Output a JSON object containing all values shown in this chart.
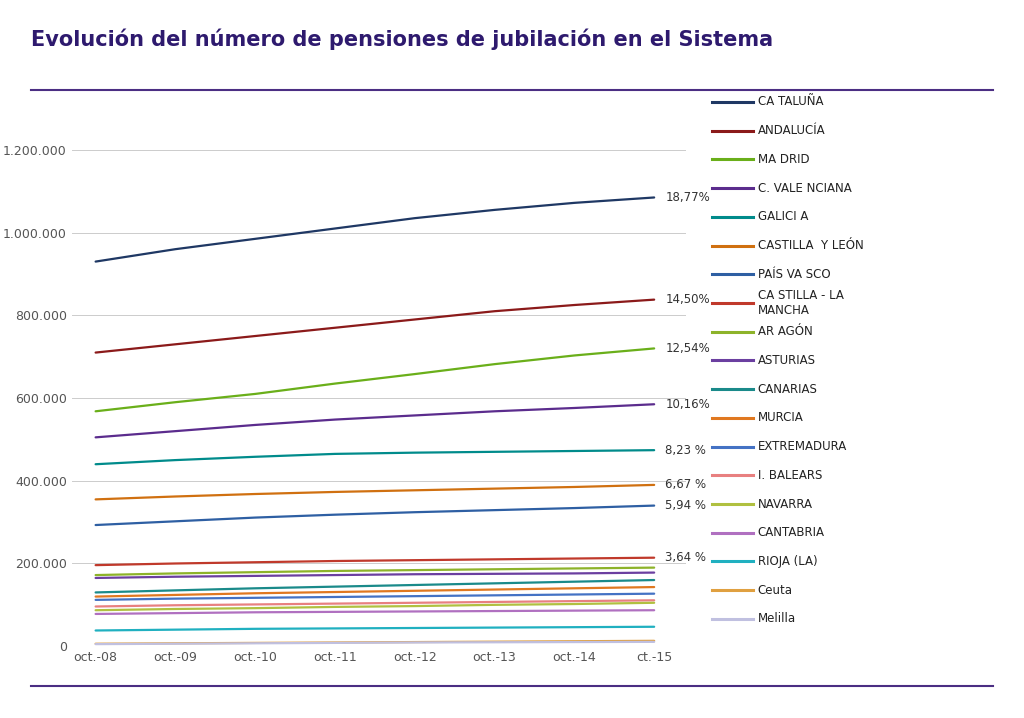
{
  "title": "Evolución del número de pensiones de jubilación en el Sistema",
  "x_labels": [
    "oct.-08",
    "oct.-09",
    "oct.-10",
    "oct.-11",
    "oct.-12",
    "oct.-13",
    "oct.-14",
    "ct.-15"
  ],
  "ylim": [
    0,
    1250000
  ],
  "yticks": [
    0,
    200000,
    400000,
    600000,
    800000,
    1000000,
    1200000
  ],
  "ytick_labels": [
    "0",
    "200.000",
    "400.000",
    "600.000",
    "800.000",
    "1.000.000",
    "1.200.000"
  ],
  "series": [
    {
      "name": "CA TALUÑA",
      "color": "#1F3864",
      "values": [
        930000,
        960000,
        985000,
        1010000,
        1035000,
        1055000,
        1072000,
        1085000
      ],
      "pct": "18,77%"
    },
    {
      "name": "ANDALUCÍA",
      "color": "#8B1A1A",
      "values": [
        710000,
        730000,
        750000,
        770000,
        790000,
        810000,
        825000,
        838000
      ],
      "pct": "14,50%"
    },
    {
      "name": "MA DRID",
      "color": "#6AAF1A",
      "values": [
        568000,
        590000,
        610000,
        635000,
        658000,
        682000,
        703000,
        720000
      ],
      "pct": "12,54%"
    },
    {
      "name": "C. VALE NCIANA",
      "color": "#5B2C8D",
      "values": [
        505000,
        520000,
        535000,
        548000,
        558000,
        568000,
        576000,
        585000
      ],
      "pct": "10,16%"
    },
    {
      "name": "GALICI A",
      "color": "#008B8B",
      "values": [
        440000,
        450000,
        458000,
        465000,
        468000,
        470000,
        472000,
        474000
      ],
      "pct": "8,23 %"
    },
    {
      "name": "CASTILLA  Y LEÓN",
      "color": "#D07010",
      "values": [
        355000,
        362000,
        368000,
        373000,
        377000,
        381000,
        385000,
        390000
      ],
      "pct": "6,67 %"
    },
    {
      "name": "PAÍS VA SCO",
      "color": "#2E5FA3",
      "values": [
        293000,
        302000,
        311000,
        318000,
        324000,
        329000,
        334000,
        340000
      ],
      "pct": "5,94 %"
    },
    {
      "name": "CA STILLA - LA\nMANCHA",
      "color": "#C0392B",
      "values": [
        196000,
        200000,
        203000,
        206000,
        208000,
        210000,
        212000,
        214000
      ],
      "pct": "3,64 %"
    },
    {
      "name": "AR AGÓN",
      "color": "#8DB32A",
      "values": [
        172000,
        176000,
        179000,
        182000,
        184000,
        186000,
        188000,
        190000
      ],
      "pct": null
    },
    {
      "name": "ASTURIAS",
      "color": "#6B3FA0",
      "values": [
        165000,
        168000,
        170000,
        172000,
        174000,
        175000,
        176000,
        178000
      ],
      "pct": null
    },
    {
      "name": "CANARIAS",
      "color": "#1A8A8A",
      "values": [
        130000,
        135000,
        140000,
        144000,
        148000,
        152000,
        156000,
        160000
      ],
      "pct": null
    },
    {
      "name": "MURCIA",
      "color": "#E07820",
      "values": [
        120000,
        124000,
        128000,
        131000,
        134000,
        137000,
        140000,
        143000
      ],
      "pct": null
    },
    {
      "name": "EXTREMADURA",
      "color": "#4472C4",
      "values": [
        112000,
        115000,
        117000,
        119000,
        121000,
        123000,
        125000,
        127000
      ],
      "pct": null
    },
    {
      "name": "I. BALEARS",
      "color": "#E88080",
      "values": [
        96000,
        99000,
        101000,
        103000,
        105000,
        107000,
        109000,
        111000
      ],
      "pct": null
    },
    {
      "name": "NAVARRA",
      "color": "#B0C040",
      "values": [
        87000,
        90000,
        92000,
        95000,
        97000,
        100000,
        102000,
        105000
      ],
      "pct": null
    },
    {
      "name": "CANTABRIA",
      "color": "#B070C0",
      "values": [
        78000,
        80000,
        82000,
        83000,
        84000,
        85000,
        86000,
        87000
      ],
      "pct": null
    },
    {
      "name": "RIOJA (LA)",
      "color": "#20B0C0",
      "values": [
        38000,
        40000,
        42000,
        43000,
        44000,
        45000,
        46000,
        47000
      ],
      "pct": null
    },
    {
      "name": "Ceuta",
      "color": "#E0A040",
      "values": [
        6000,
        7000,
        8000,
        9000,
        10000,
        11000,
        12000,
        13000
      ],
      "pct": null
    },
    {
      "name": "Melilla",
      "color": "#C0C0E0",
      "values": [
        5000,
        6000,
        7000,
        8000,
        9000,
        9500,
        10000,
        10500
      ],
      "pct": null
    }
  ],
  "background_color": "#FFFFFF",
  "title_color": "#2E1A6E",
  "title_fontsize": 15,
  "axis_label_fontsize": 9,
  "legend_fontsize": 8.5,
  "pct_fontsize": 8.5,
  "top_line_color": "#4B2E83",
  "bottom_line_color": "#4B2E83"
}
